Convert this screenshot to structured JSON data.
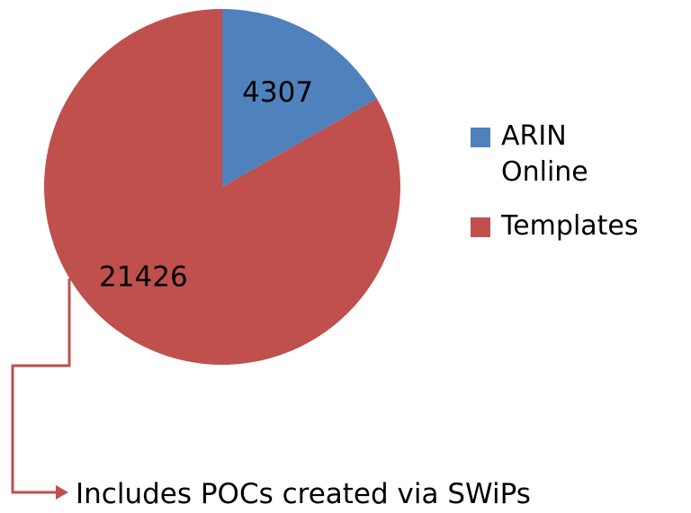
{
  "chart_data": {
    "type": "pie",
    "categories": [
      "ARIN Online",
      "Templates"
    ],
    "values": [
      4307,
      21426
    ],
    "colors": [
      "#4f81bd",
      "#c0504d"
    ],
    "legend": "right",
    "annotation": "Includes POCs created via SWiPs"
  }
}
